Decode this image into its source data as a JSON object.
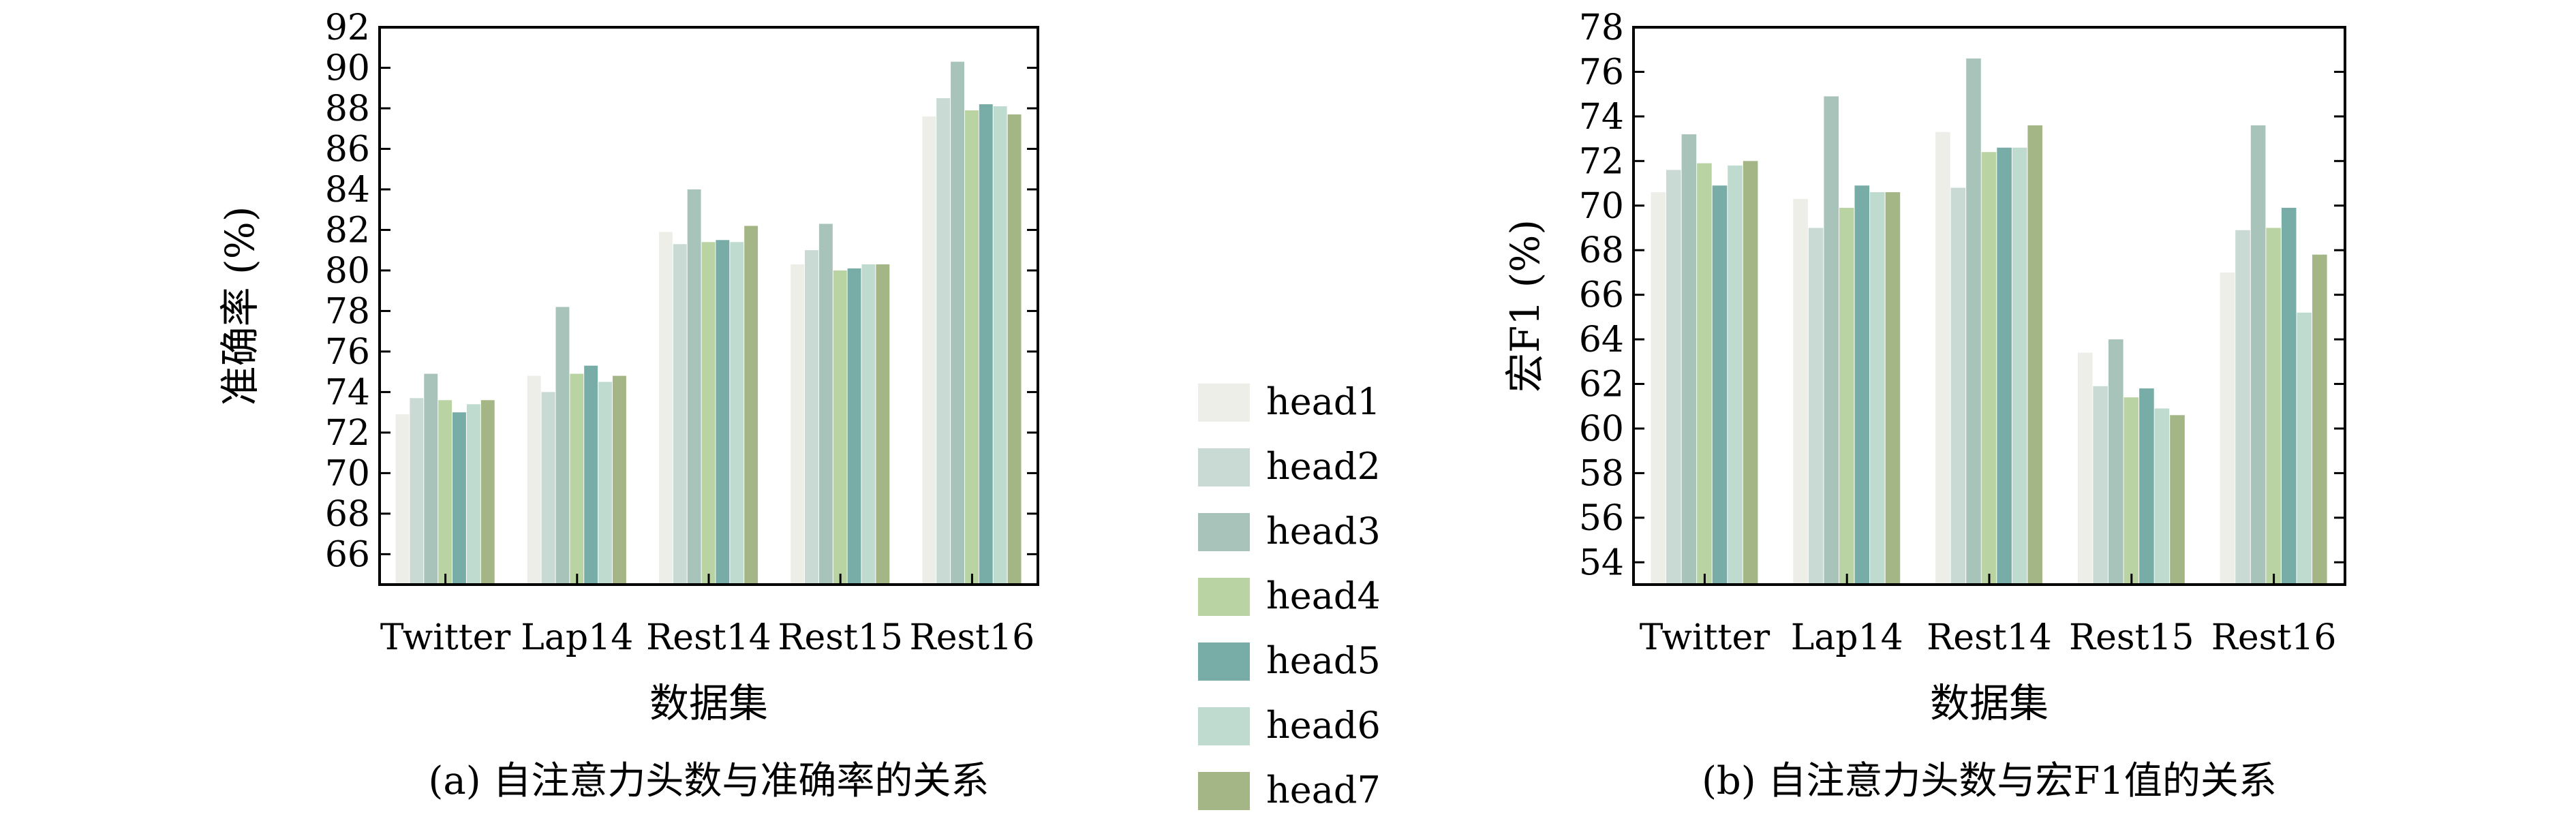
{
  "legend": {
    "items": [
      {
        "label": "head1",
        "color": "#ECEEE7"
      },
      {
        "label": "head2",
        "color": "#C8DAD3"
      },
      {
        "label": "head3",
        "color": "#A8C3B9"
      },
      {
        "label": "head4",
        "color": "#B9D3A3"
      },
      {
        "label": "head5",
        "color": "#77ADA6"
      },
      {
        "label": "head6",
        "color": "#BFDBD0"
      },
      {
        "label": "head7",
        "color": "#A4B686"
      }
    ]
  },
  "chart_data": [
    {
      "type": "bar",
      "caption": "(a)  自注意力头数与准确率的关系",
      "xlabel": "数据集",
      "ylabel": "准确率 (%)",
      "categories": [
        "Twitter",
        "Lap14",
        "Rest14",
        "Rest15",
        "Rest16"
      ],
      "ylim": [
        64.5,
        92
      ],
      "yticks": [
        66,
        68,
        70,
        72,
        74,
        76,
        78,
        80,
        82,
        84,
        86,
        88,
        90,
        92
      ],
      "series": [
        {
          "name": "head1",
          "values": [
            72.9,
            74.8,
            81.9,
            80.3,
            87.6
          ]
        },
        {
          "name": "head2",
          "values": [
            73.7,
            74.0,
            81.3,
            81.0,
            88.5
          ]
        },
        {
          "name": "head3",
          "values": [
            74.9,
            78.2,
            84.0,
            82.3,
            90.3
          ]
        },
        {
          "name": "head4",
          "values": [
            73.6,
            74.9,
            81.4,
            80.0,
            87.9
          ]
        },
        {
          "name": "head5",
          "values": [
            73.0,
            75.3,
            81.5,
            80.1,
            88.2
          ]
        },
        {
          "name": "head6",
          "values": [
            73.4,
            74.5,
            81.4,
            80.3,
            88.1
          ]
        },
        {
          "name": "head7",
          "values": [
            73.6,
            74.8,
            82.2,
            80.3,
            87.7
          ]
        }
      ]
    },
    {
      "type": "bar",
      "caption": "(b) 自注意力头数与宏F1值的关系",
      "xlabel": "数据集",
      "ylabel": "宏F1 (%)",
      "categories": [
        "Twitter",
        "Lap14",
        "Rest14",
        "Rest15",
        "Rest16"
      ],
      "ylim": [
        53,
        78
      ],
      "yticks": [
        54,
        56,
        58,
        60,
        62,
        64,
        66,
        68,
        70,
        72,
        74,
        76,
        78
      ],
      "series": [
        {
          "name": "head1",
          "values": [
            70.6,
            70.3,
            73.3,
            63.4,
            67.0
          ]
        },
        {
          "name": "head2",
          "values": [
            71.6,
            69.0,
            70.8,
            61.9,
            68.9
          ]
        },
        {
          "name": "head3",
          "values": [
            73.2,
            74.9,
            76.6,
            64.0,
            73.6
          ]
        },
        {
          "name": "head4",
          "values": [
            71.9,
            69.9,
            72.4,
            61.4,
            69.0
          ]
        },
        {
          "name": "head5",
          "values": [
            70.9,
            70.9,
            72.6,
            61.8,
            69.9
          ]
        },
        {
          "name": "head6",
          "values": [
            71.8,
            70.6,
            72.6,
            60.9,
            65.2
          ]
        },
        {
          "name": "head7",
          "values": [
            72.0,
            70.6,
            73.6,
            60.6,
            67.8
          ]
        }
      ]
    }
  ]
}
